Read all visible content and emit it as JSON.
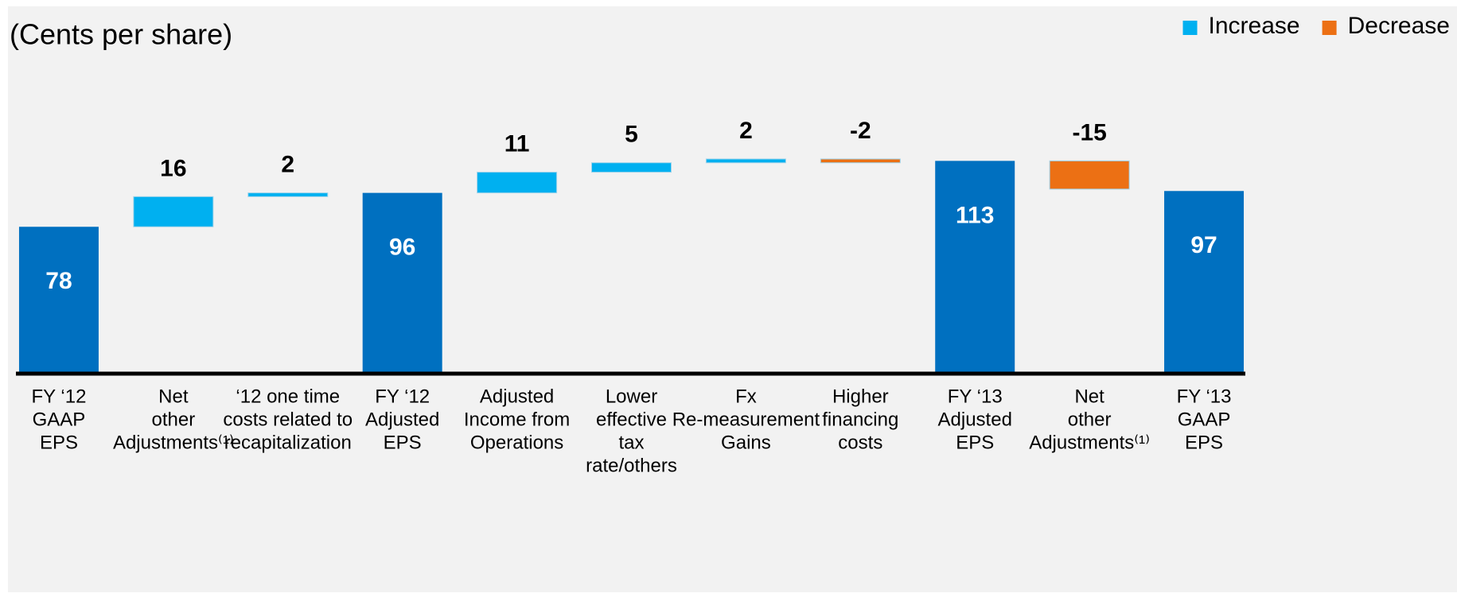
{
  "chart_data": {
    "type": "waterfall",
    "title": "(Cents per share)",
    "categories": [
      [
        "FY ‘12",
        "GAAP",
        "EPS"
      ],
      [
        "Net",
        "other",
        "Adjustments⁽¹⁾"
      ],
      [
        "‘12 one time",
        "costs related to",
        "recapitalization"
      ],
      [
        "FY ‘12",
        "Adjusted",
        "EPS"
      ],
      [
        "Adjusted",
        "Income from",
        "Operations"
      ],
      [
        "Lower",
        "effective",
        "tax",
        "rate/others"
      ],
      [
        "Fx",
        "Re-measurement",
        "Gains"
      ],
      [
        "Higher",
        "financing",
        "costs"
      ],
      [
        "FY ‘13",
        "Adjusted",
        "EPS"
      ],
      [
        "Net",
        "other",
        "Adjustments⁽¹⁾"
      ],
      [
        "FY ‘13",
        "GAAP",
        "EPS"
      ]
    ],
    "values": [
      78,
      16,
      2,
      96,
      11,
      5,
      2,
      -2,
      113,
      -15,
      97
    ],
    "is_total": [
      true,
      false,
      false,
      true,
      false,
      false,
      false,
      false,
      true,
      false,
      true
    ],
    "total_color": "#0070c0",
    "legend": [
      {
        "name": "Increase",
        "color": "#00b0f0"
      },
      {
        "name": "Decrease",
        "color": "#ec7014"
      }
    ]
  }
}
